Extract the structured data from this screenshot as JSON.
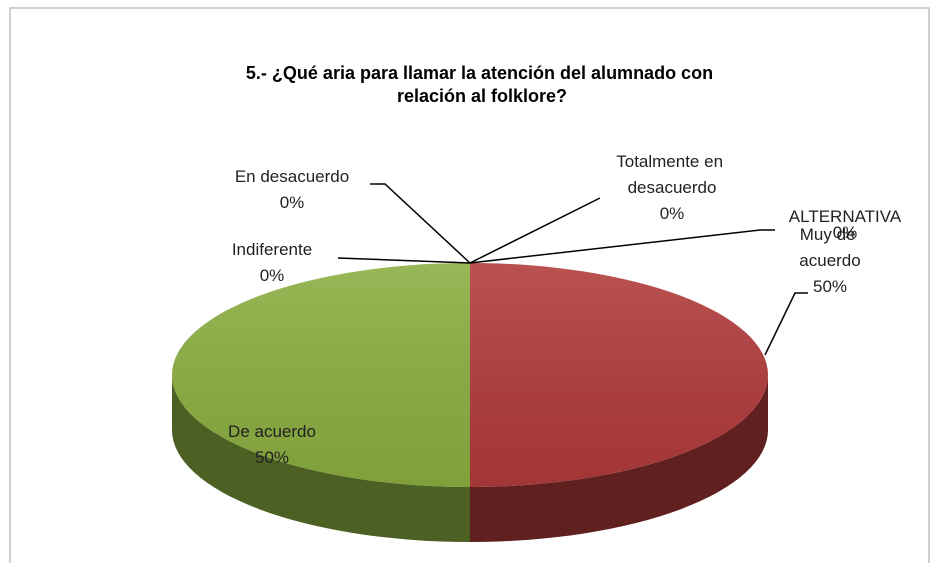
{
  "chart_data": {
    "type": "pie",
    "title": "5.- ¿Qué aria para llamar la atención del alumnado con relación al folklore?",
    "categories": [
      "ALTERNATIVA",
      "Muy de acuerdo",
      "De acuerdo",
      "Indiferente",
      "En desacuerdo",
      "Totalmente en desacuerdo"
    ],
    "values": [
      0,
      50,
      50,
      0,
      0,
      0
    ],
    "value_labels": [
      "0%",
      "50%",
      "50%",
      "0%",
      "0%",
      "0%"
    ],
    "colors": [
      "#4f81bd",
      "#b13a3a",
      "#8aae40",
      "#7f62a0",
      "#4bacc6",
      "#f79646"
    ]
  }
}
